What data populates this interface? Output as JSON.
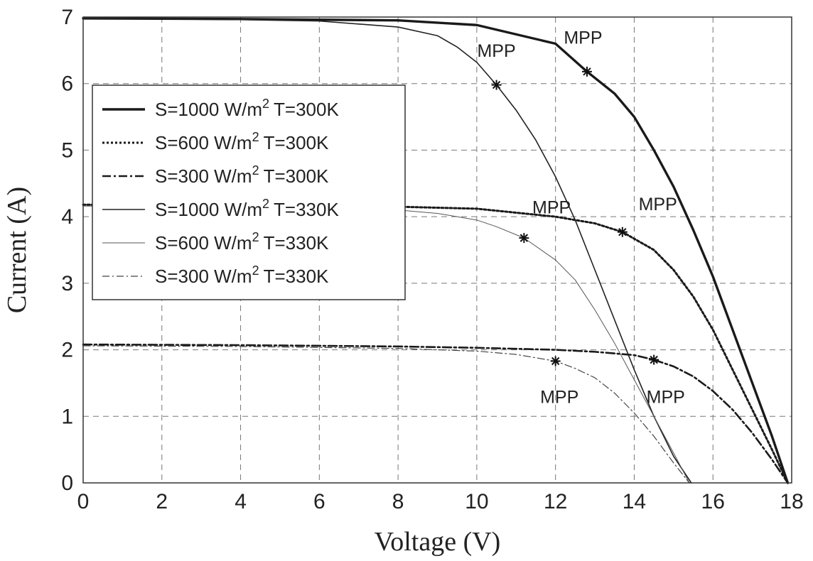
{
  "chart_data": {
    "type": "line",
    "title": "",
    "xlabel": "Voltage (V)",
    "ylabel": "Current (A)",
    "xlim": [
      0,
      18
    ],
    "ylim": [
      0,
      7
    ],
    "x_ticks": [
      "0",
      "2",
      "4",
      "6",
      "8",
      "10",
      "12",
      "14",
      "16",
      "18"
    ],
    "y_ticks": [
      "0",
      "1",
      "2",
      "3",
      "4",
      "5",
      "6",
      "7"
    ],
    "grid": true,
    "legend_position": "upper-left",
    "series": [
      {
        "name": "S=1000 W/m² T=300K",
        "legend_main": "S=1000 W/m",
        "legend_tail": "T=300K",
        "style": "solid-thick",
        "x": [
          0,
          4,
          8,
          10,
          12,
          12.8,
          13.5,
          14,
          14.5,
          15,
          15.5,
          16,
          16.5,
          17,
          17.5,
          17.9
        ],
        "y": [
          6.98,
          6.97,
          6.95,
          6.88,
          6.6,
          6.18,
          5.85,
          5.5,
          5.0,
          4.45,
          3.8,
          3.1,
          2.3,
          1.5,
          0.7,
          0.0
        ]
      },
      {
        "name": "S=600 W/m² T=300K",
        "legend_main": "S=600 W/m",
        "legend_tail": "T=300K",
        "style": "dotted",
        "x": [
          0,
          4,
          8,
          10,
          12,
          13,
          13.7,
          14.5,
          15,
          15.5,
          16,
          16.5,
          17,
          17.5,
          17.9
        ],
        "y": [
          4.18,
          4.17,
          4.15,
          4.12,
          4.0,
          3.9,
          3.77,
          3.5,
          3.2,
          2.8,
          2.3,
          1.7,
          1.1,
          0.5,
          0.0
        ]
      },
      {
        "name": "S=300 W/m² T=300K",
        "legend_main": "S=300 W/m",
        "legend_tail": "T=300K",
        "style": "dash-dot",
        "x": [
          0,
          4,
          8,
          10,
          12,
          13,
          14,
          14.5,
          15,
          15.5,
          16,
          16.5,
          17,
          17.5,
          17.9
        ],
        "y": [
          2.08,
          2.07,
          2.05,
          2.03,
          2.0,
          1.97,
          1.92,
          1.85,
          1.75,
          1.6,
          1.38,
          1.1,
          0.75,
          0.35,
          0.0
        ]
      },
      {
        "name": "S=1000 W/m² T=330K",
        "legend_main": "S=1000 W/m",
        "legend_tail": "T=330K",
        "style": "solid-thin",
        "x": [
          0,
          4,
          6,
          8,
          9,
          9.5,
          10,
          10.5,
          11,
          11.5,
          12,
          12.5,
          13,
          13.5,
          14,
          14.5,
          15,
          15.45
        ],
        "y": [
          6.98,
          6.96,
          6.94,
          6.85,
          6.72,
          6.55,
          6.32,
          5.98,
          5.6,
          5.15,
          4.6,
          3.95,
          3.2,
          2.45,
          1.7,
          1.0,
          0.4,
          0.0
        ]
      },
      {
        "name": "S=600 W/m² T=330K",
        "legend_main": "S=600 W/m",
        "legend_tail": "T=330K",
        "style": "solid-hairline",
        "x": [
          0,
          4,
          8,
          9,
          10,
          10.5,
          11.2,
          12,
          12.5,
          13,
          13.5,
          14,
          14.5,
          15,
          15.4
        ],
        "y": [
          4.16,
          4.15,
          4.1,
          4.05,
          3.95,
          3.85,
          3.68,
          3.35,
          3.05,
          2.6,
          2.1,
          1.55,
          1.0,
          0.45,
          0.0
        ]
      },
      {
        "name": "S=300 W/m² T=330K",
        "legend_main": "S=300 W/m",
        "legend_tail": "T=330K",
        "style": "dash-dot-thin",
        "x": [
          0,
          4,
          8,
          10,
          11,
          12,
          12.5,
          13,
          13.5,
          14,
          14.5,
          15,
          15.4
        ],
        "y": [
          2.06,
          2.05,
          2.02,
          1.98,
          1.93,
          1.83,
          1.72,
          1.58,
          1.35,
          1.05,
          0.7,
          0.3,
          0.0
        ]
      }
    ],
    "mpp_points": [
      {
        "label": "MPP",
        "x": 12.8,
        "y": 6.18,
        "lx": 12.7,
        "ly": 6.6
      },
      {
        "label": "MPP",
        "x": 10.5,
        "y": 5.98,
        "lx": 10.5,
        "ly": 6.4
      },
      {
        "label": "MPP",
        "x": 13.7,
        "y": 3.77,
        "lx": 14.6,
        "ly": 4.1
      },
      {
        "label": "MPP",
        "x": 11.2,
        "y": 3.68,
        "lx": 11.9,
        "ly": 4.05
      },
      {
        "label": "MPP",
        "x": 14.5,
        "y": 1.85,
        "lx": 14.8,
        "ly": 1.2
      },
      {
        "label": "MPP",
        "x": 12.0,
        "y": 1.83,
        "lx": 12.1,
        "ly": 1.2
      }
    ],
    "legend_superscript": "2"
  }
}
